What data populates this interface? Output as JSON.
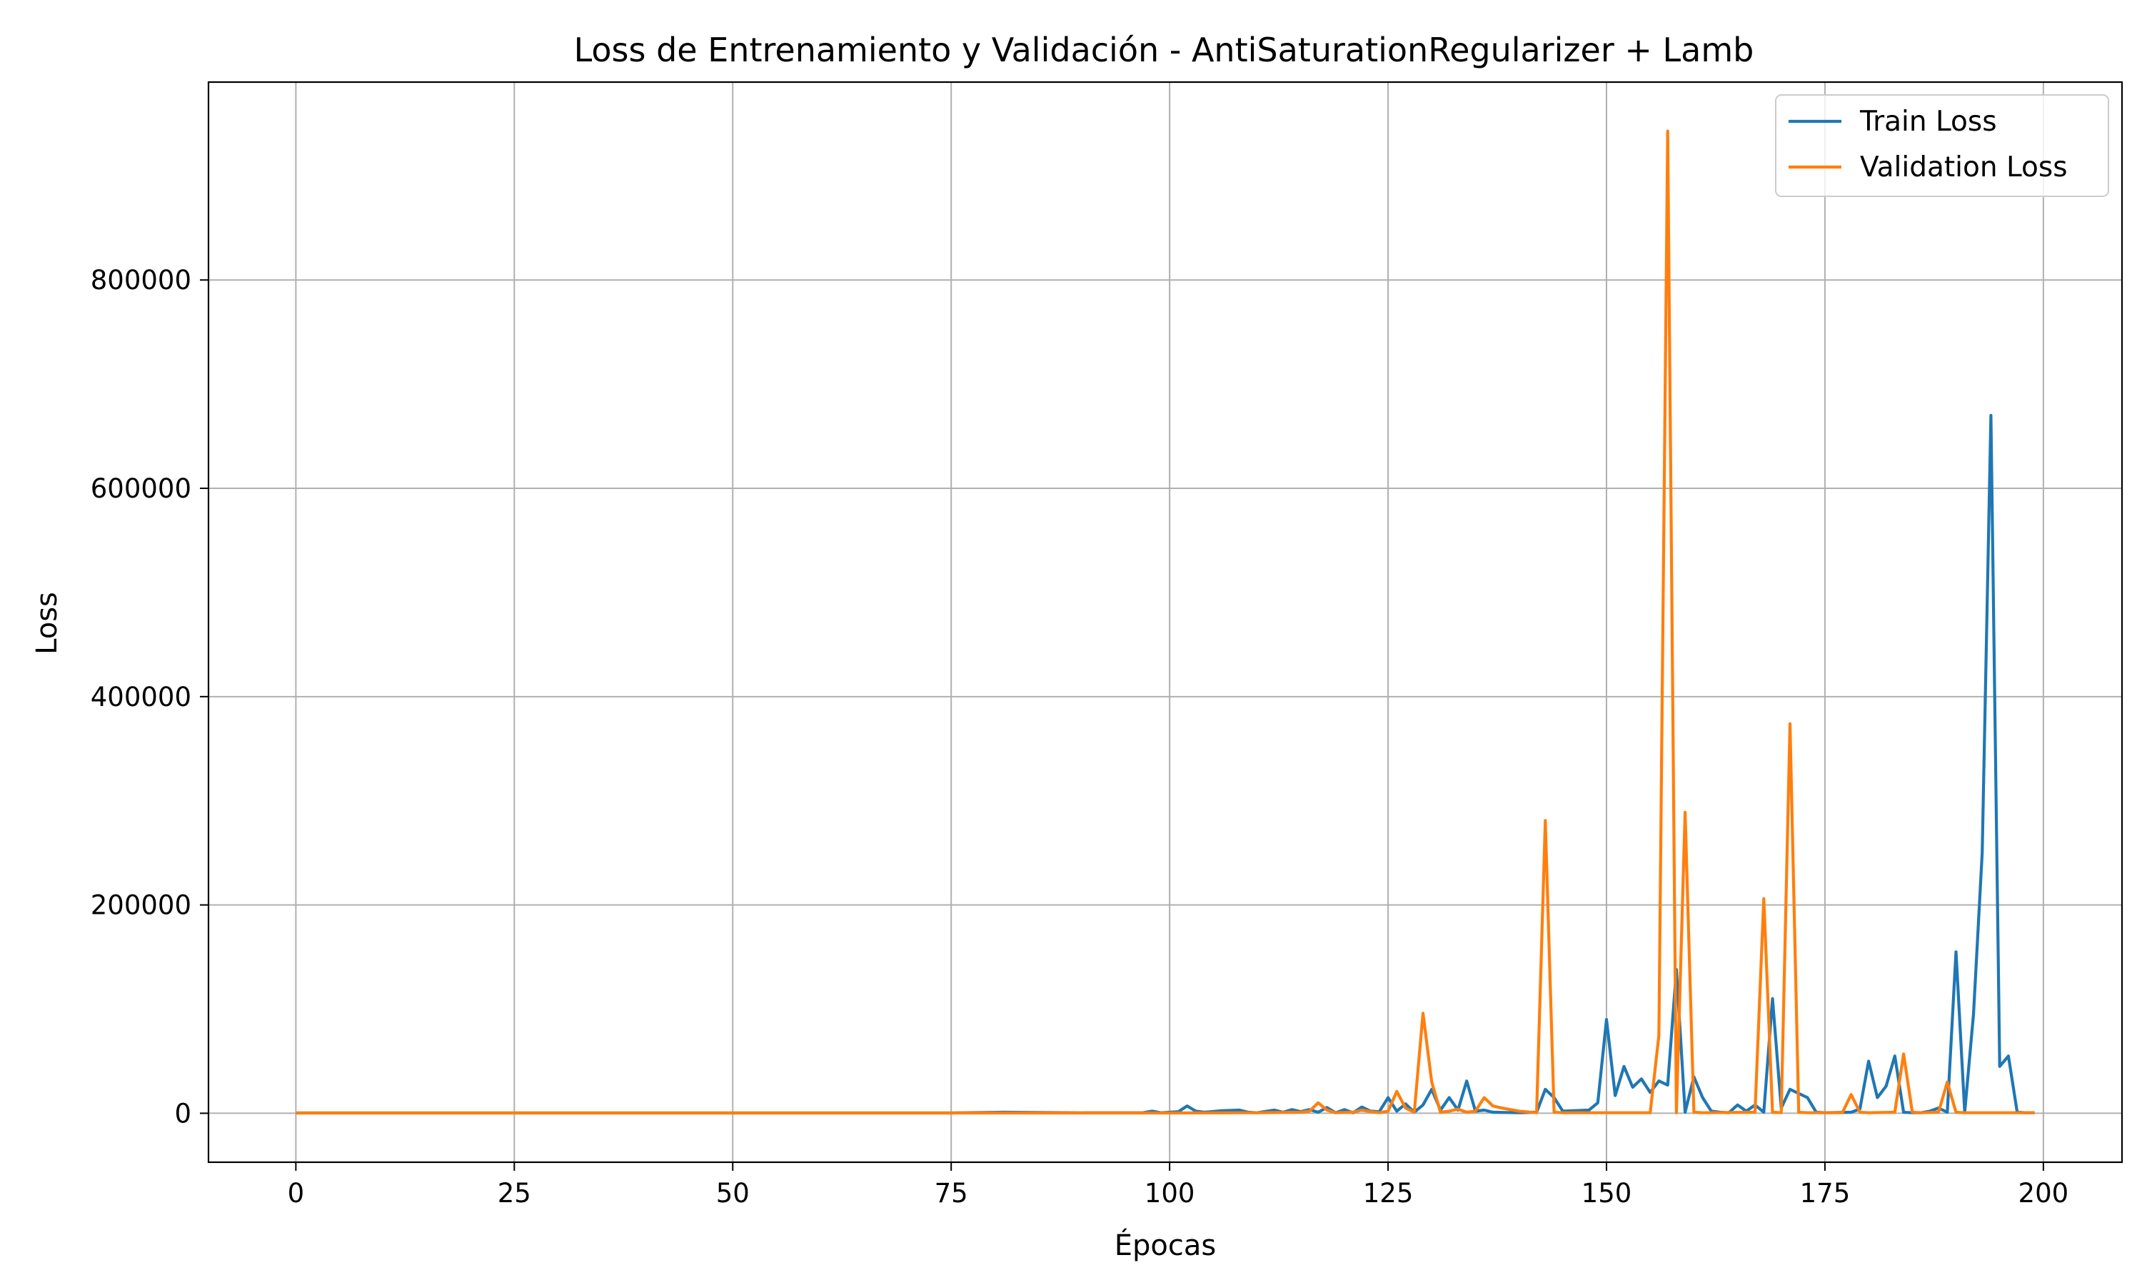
{
  "chart_data": {
    "type": "line",
    "title": "Loss de Entrenamiento y Validación - AntiSaturationRegularizer + Lamb",
    "xlabel": "Épocas",
    "ylabel": "Loss",
    "xlim": [
      -10,
      209
    ],
    "ylim": [
      -47000,
      990000
    ],
    "xticks": [
      0,
      25,
      50,
      75,
      100,
      125,
      150,
      175,
      200
    ],
    "yticks": [
      0,
      200000,
      400000,
      600000,
      800000
    ],
    "grid": true,
    "legend": "top-right",
    "series": [
      {
        "name": "Train Loss",
        "color": "#1f77b4",
        "points": [
          [
            0,
            300
          ],
          [
            25,
            300
          ],
          [
            50,
            300
          ],
          [
            75,
            300
          ],
          [
            81,
            1000
          ],
          [
            90,
            400
          ],
          [
            97,
            600
          ],
          [
            98,
            2000
          ],
          [
            99,
            500
          ],
          [
            101,
            1500
          ],
          [
            102,
            7000
          ],
          [
            103,
            2000
          ],
          [
            104,
            1000
          ],
          [
            106,
            2500
          ],
          [
            108,
            3000
          ],
          [
            109,
            1000
          ],
          [
            110,
            500
          ],
          [
            112,
            3000
          ],
          [
            113,
            1000
          ],
          [
            114,
            3500
          ],
          [
            115,
            1500
          ],
          [
            116,
            3500
          ],
          [
            117,
            1000
          ],
          [
            118,
            5500
          ],
          [
            119,
            500
          ],
          [
            120,
            3500
          ],
          [
            121,
            500
          ],
          [
            122,
            6000
          ],
          [
            123,
            2000
          ],
          [
            124,
            1500
          ],
          [
            125,
            15000
          ],
          [
            126,
            2000
          ],
          [
            127,
            9000
          ],
          [
            128,
            1000
          ],
          [
            129,
            8000
          ],
          [
            130,
            23000
          ],
          [
            131,
            3000
          ],
          [
            132,
            15000
          ],
          [
            133,
            3000
          ],
          [
            134,
            31000
          ],
          [
            135,
            2000
          ],
          [
            136,
            3000
          ],
          [
            137,
            1000
          ],
          [
            140,
            500
          ],
          [
            142,
            1000
          ],
          [
            143,
            23000
          ],
          [
            144,
            15000
          ],
          [
            145,
            2000
          ],
          [
            148,
            3000
          ],
          [
            149,
            10000
          ],
          [
            150,
            90000
          ],
          [
            151,
            17000
          ],
          [
            152,
            45000
          ],
          [
            153,
            25000
          ],
          [
            154,
            33000
          ],
          [
            155,
            20000
          ],
          [
            156,
            31000
          ],
          [
            157,
            27000
          ],
          [
            158,
            138000
          ],
          [
            159,
            1000
          ],
          [
            160,
            35000
          ],
          [
            161,
            15000
          ],
          [
            162,
            2000
          ],
          [
            163,
            1000
          ],
          [
            164,
            500
          ],
          [
            165,
            8000
          ],
          [
            166,
            2000
          ],
          [
            167,
            8000
          ],
          [
            168,
            1000
          ],
          [
            169,
            110000
          ],
          [
            170,
            5000
          ],
          [
            171,
            23000
          ],
          [
            172,
            19000
          ],
          [
            173,
            15000
          ],
          [
            174,
            1000
          ],
          [
            175,
            500
          ],
          [
            178,
            1000
          ],
          [
            179,
            4000
          ],
          [
            180,
            50000
          ],
          [
            181,
            15000
          ],
          [
            182,
            26000
          ],
          [
            183,
            55000
          ],
          [
            184,
            1000
          ],
          [
            185,
            500
          ],
          [
            186,
            500
          ],
          [
            187,
            2000
          ],
          [
            188,
            5000
          ],
          [
            189,
            1000
          ],
          [
            190,
            155000
          ],
          [
            191,
            1000
          ],
          [
            192,
            95000
          ],
          [
            193,
            250000
          ],
          [
            194,
            670000
          ],
          [
            195,
            45000
          ],
          [
            196,
            55000
          ],
          [
            197,
            1000
          ],
          [
            198,
            500
          ],
          [
            199,
            500
          ]
        ]
      },
      {
        "name": "Validation Loss",
        "color": "#ff7f0e",
        "points": [
          [
            0,
            300
          ],
          [
            25,
            300
          ],
          [
            50,
            300
          ],
          [
            75,
            300
          ],
          [
            100,
            300
          ],
          [
            110,
            500
          ],
          [
            115,
            1000
          ],
          [
            116,
            2000
          ],
          [
            117,
            10000
          ],
          [
            118,
            3000
          ],
          [
            119,
            500
          ],
          [
            121,
            1000
          ],
          [
            122,
            3000
          ],
          [
            123,
            1500
          ],
          [
            124,
            500
          ],
          [
            125,
            2000
          ],
          [
            126,
            21000
          ],
          [
            127,
            5000
          ],
          [
            128,
            1000
          ],
          [
            129,
            96000
          ],
          [
            130,
            30000
          ],
          [
            131,
            1000
          ],
          [
            132,
            2000
          ],
          [
            133,
            4000
          ],
          [
            134,
            1000
          ],
          [
            135,
            2000
          ],
          [
            136,
            15000
          ],
          [
            137,
            7000
          ],
          [
            138,
            5000
          ],
          [
            140,
            2000
          ],
          [
            142,
            500
          ],
          [
            143,
            281000
          ],
          [
            144,
            1000
          ],
          [
            145,
            500
          ],
          [
            150,
            500
          ],
          [
            155,
            500
          ],
          [
            156,
            75000
          ],
          [
            157,
            943000
          ],
          [
            158,
            500
          ],
          [
            159,
            289000
          ],
          [
            160,
            1000
          ],
          [
            161,
            500
          ],
          [
            167,
            1000
          ],
          [
            168,
            206000
          ],
          [
            169,
            1000
          ],
          [
            170,
            500
          ],
          [
            171,
            374000
          ],
          [
            172,
            1000
          ],
          [
            173,
            500
          ],
          [
            177,
            500
          ],
          [
            178,
            18000
          ],
          [
            179,
            1000
          ],
          [
            180,
            500
          ],
          [
            183,
            1000
          ],
          [
            184,
            57000
          ],
          [
            185,
            1000
          ],
          [
            186,
            500
          ],
          [
            188,
            1000
          ],
          [
            189,
            30000
          ],
          [
            190,
            1000
          ],
          [
            191,
            500
          ],
          [
            199,
            500
          ]
        ]
      }
    ]
  }
}
